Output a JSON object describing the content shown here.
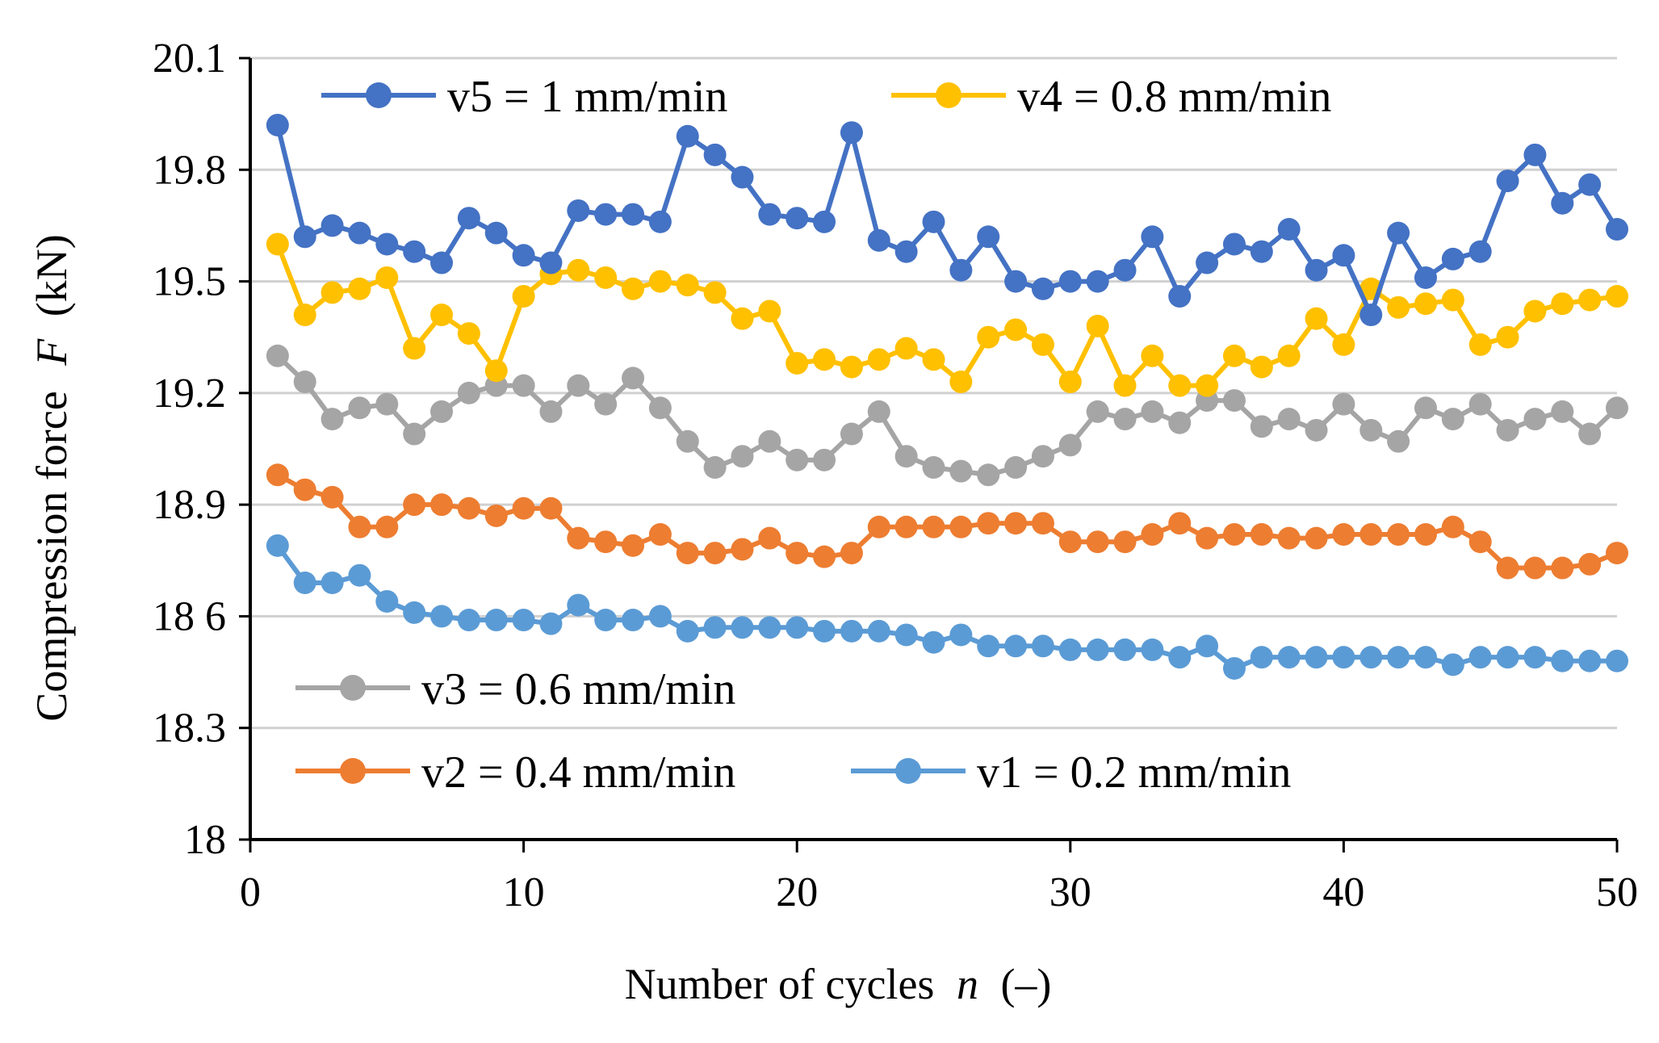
{
  "chart_data": {
    "type": "line",
    "title": "",
    "xlabel": "Number of cycles",
    "xlabel_var": "n",
    "xlabel_unit": "(–)",
    "ylabel": "Compression force",
    "ylabel_var": "F",
    "ylabel_unit": "(kN)",
    "xlim": [
      0,
      50
    ],
    "ylim": [
      18,
      20.1
    ],
    "xticks": [
      0,
      10,
      20,
      30,
      40,
      50
    ],
    "yticks": [
      18,
      18.3,
      18.6,
      18.9,
      19.2,
      19.5,
      19.8,
      20.1
    ],
    "ytick_labels": [
      "18",
      "18.3",
      "18 6",
      "18.9",
      "19.2",
      "19.5",
      "19.8",
      "20.1"
    ],
    "grid": true,
    "x": [
      1,
      2,
      3,
      4,
      5,
      6,
      7,
      8,
      9,
      10,
      11,
      12,
      13,
      14,
      15,
      16,
      17,
      18,
      19,
      20,
      21,
      22,
      23,
      24,
      25,
      26,
      27,
      28,
      29,
      30,
      31,
      32,
      33,
      34,
      35,
      36,
      37,
      38,
      39,
      40,
      41,
      42,
      43,
      44,
      45,
      46,
      47,
      48,
      49,
      50
    ],
    "series": [
      {
        "name": "v5 = 1 mm/min",
        "color": "#4472C4",
        "values": [
          19.92,
          19.62,
          19.65,
          19.63,
          19.6,
          19.58,
          19.55,
          19.67,
          19.63,
          19.57,
          19.55,
          19.69,
          19.68,
          19.68,
          19.66,
          19.89,
          19.84,
          19.78,
          19.68,
          19.67,
          19.66,
          19.9,
          19.61,
          19.58,
          19.66,
          19.53,
          19.62,
          19.5,
          19.48,
          19.5,
          19.5,
          19.53,
          19.62,
          19.46,
          19.55,
          19.6,
          19.58,
          19.64,
          19.53,
          19.57,
          19.41,
          19.63,
          19.51,
          19.56,
          19.58,
          19.77,
          19.84,
          19.71,
          19.76,
          19.64
        ]
      },
      {
        "name": "v4 = 0.8 mm/min",
        "color": "#FFC000",
        "values": [
          19.6,
          19.41,
          19.47,
          19.48,
          19.51,
          19.32,
          19.41,
          19.36,
          19.26,
          19.46,
          19.52,
          19.53,
          19.51,
          19.48,
          19.5,
          19.49,
          19.47,
          19.4,
          19.42,
          19.28,
          19.29,
          19.27,
          19.29,
          19.32,
          19.29,
          19.23,
          19.35,
          19.37,
          19.33,
          19.23,
          19.38,
          19.22,
          19.3,
          19.22,
          19.22,
          19.3,
          19.27,
          19.3,
          19.4,
          19.33,
          19.48,
          19.43,
          19.44,
          19.45,
          19.33,
          19.35,
          19.42,
          19.44,
          19.45,
          19.46
        ]
      },
      {
        "name": "v3 = 0.6 mm/min",
        "color": "#A5A5A5",
        "values": [
          19.3,
          19.23,
          19.13,
          19.16,
          19.17,
          19.09,
          19.15,
          19.2,
          19.22,
          19.22,
          19.15,
          19.22,
          19.17,
          19.24,
          19.16,
          19.07,
          19.0,
          19.03,
          19.07,
          19.02,
          19.02,
          19.09,
          19.15,
          19.03,
          19.0,
          18.99,
          18.98,
          19.0,
          19.03,
          19.06,
          19.15,
          19.13,
          19.15,
          19.12,
          19.18,
          19.18,
          19.11,
          19.13,
          19.1,
          19.17,
          19.1,
          19.07,
          19.16,
          19.13,
          19.17,
          19.1,
          19.13,
          19.15,
          19.09,
          19.16
        ]
      },
      {
        "name": "v2 = 0.4 mm/min",
        "color": "#ED7D31",
        "values": [
          18.98,
          18.94,
          18.92,
          18.84,
          18.84,
          18.9,
          18.9,
          18.89,
          18.87,
          18.89,
          18.89,
          18.81,
          18.8,
          18.79,
          18.82,
          18.77,
          18.77,
          18.78,
          18.81,
          18.77,
          18.76,
          18.77,
          18.84,
          18.84,
          18.84,
          18.84,
          18.85,
          18.85,
          18.85,
          18.8,
          18.8,
          18.8,
          18.82,
          18.85,
          18.81,
          18.82,
          18.82,
          18.81,
          18.81,
          18.82,
          18.82,
          18.82,
          18.82,
          18.84,
          18.8,
          18.73,
          18.73,
          18.73,
          18.74,
          18.77
        ]
      },
      {
        "name": "v1 = 0.2 mm/min",
        "color": "#5B9BD5",
        "values": [
          18.79,
          18.69,
          18.69,
          18.71,
          18.64,
          18.61,
          18.6,
          18.59,
          18.59,
          18.59,
          18.58,
          18.63,
          18.59,
          18.59,
          18.6,
          18.56,
          18.57,
          18.57,
          18.57,
          18.57,
          18.56,
          18.56,
          18.56,
          18.55,
          18.53,
          18.55,
          18.52,
          18.52,
          18.52,
          18.51,
          18.51,
          18.51,
          18.51,
          18.49,
          18.52,
          18.46,
          18.49,
          18.49,
          18.49,
          18.49,
          18.49,
          18.49,
          18.49,
          18.47,
          18.49,
          18.49,
          18.49,
          18.48,
          18.48,
          18.48
        ]
      }
    ],
    "legend": [
      {
        "series": 0,
        "position": "top-left"
      },
      {
        "series": 1,
        "position": "top-right"
      },
      {
        "series": 2,
        "position": "lower-left"
      },
      {
        "series": 3,
        "position": "bottom-left"
      },
      {
        "series": 4,
        "position": "bottom-right"
      }
    ]
  }
}
